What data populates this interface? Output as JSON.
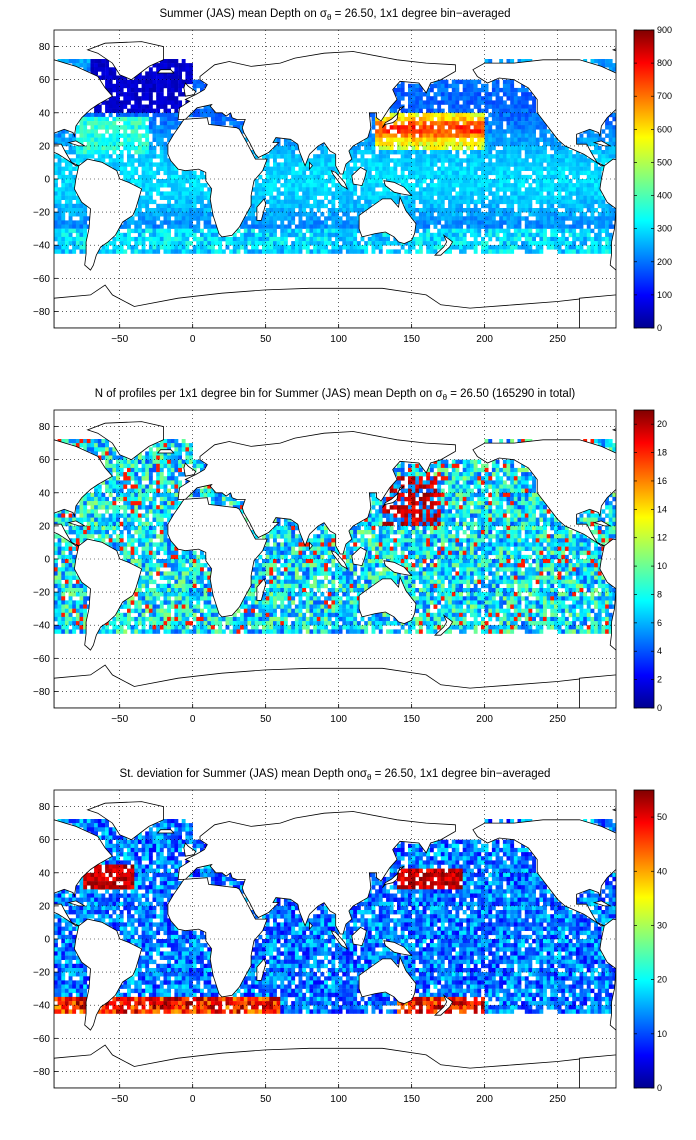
{
  "panels": [
    {
      "title_prefix": "Summer (JAS) mean Depth on ",
      "sigma": "σ",
      "sigma_sub": "θ",
      "title_suffix": " = 26.50, 1x1 degree bin−averaged",
      "colorbar_ticks": [
        "900",
        "800",
        "700",
        "600",
        "500",
        "400",
        "300",
        "200",
        "100",
        "0"
      ],
      "colorbar_range": [
        0,
        900
      ]
    },
    {
      "title_prefix": "N of profiles per 1x1 degree bin for Summer (JAS) mean Depth on ",
      "sigma": "σ",
      "sigma_sub": "θ",
      "title_suffix": " = 26.50 (165290 in total)",
      "colorbar_ticks": [
        "20",
        "18",
        "16",
        "14",
        "12",
        "10",
        "8",
        "6",
        "4",
        "2",
        "0"
      ],
      "colorbar_range": [
        0,
        21
      ]
    },
    {
      "title_prefix": "St. deviation for Summer (JAS) mean Depth on",
      "sigma": "σ",
      "sigma_sub": "θ",
      "title_suffix": " = 26.50, 1x1 degree bin−averaged",
      "colorbar_ticks": [
        "50",
        "40",
        "30",
        "20",
        "10",
        "0"
      ],
      "colorbar_range": [
        0,
        55
      ]
    }
  ],
  "map_axes": {
    "x_ticks": [
      "-50",
      "0",
      "50",
      "100",
      "150",
      "200",
      "250"
    ],
    "y_ticks": [
      "80",
      "60",
      "40",
      "20",
      "0",
      "-20",
      "-40",
      "-60",
      "-80"
    ],
    "x_range": [
      -95,
      290
    ],
    "y_range": [
      -90,
      90
    ]
  },
  "colors": {
    "jet": [
      "#00008f",
      "#0000ff",
      "#0080ff",
      "#00ffff",
      "#80ff80",
      "#ffff00",
      "#ff8000",
      "#ff0000",
      "#800000"
    ],
    "land": "#ffffff",
    "coast": "#000000",
    "grid": "#000000"
  }
}
